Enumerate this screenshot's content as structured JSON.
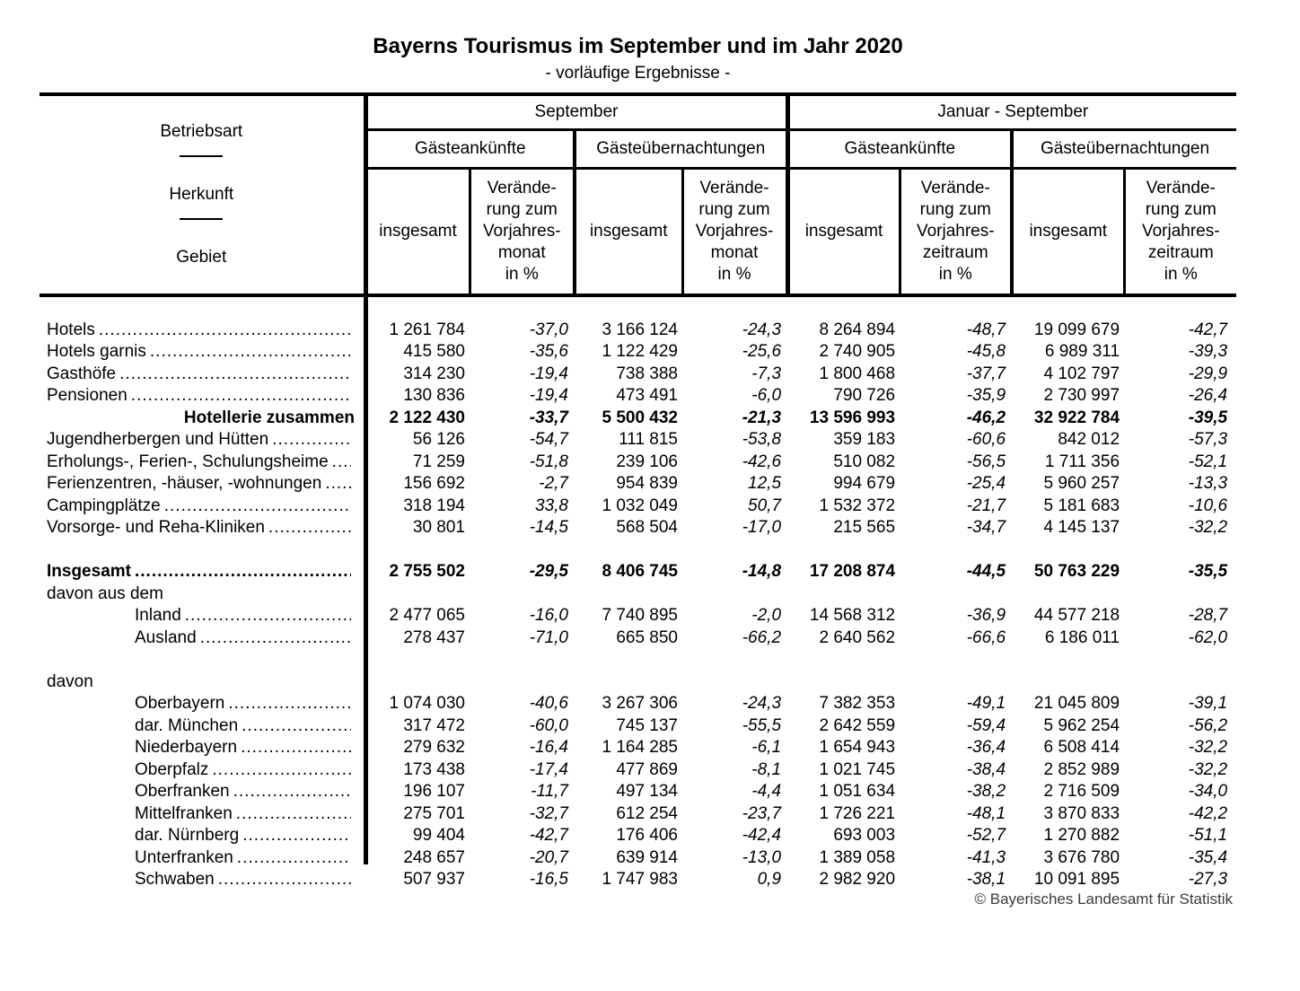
{
  "page": {
    "title": "Bayerns Tourismus im September und im Jahr 2020",
    "subtitle": "- vorläufige Ergebnisse -",
    "footer": "© Bayerisches Landesamt für Statistik"
  },
  "table": {
    "row_header": {
      "betriebsart": "Betriebsart",
      "herkunft": "Herkunft",
      "gebiet": "Gebiet"
    },
    "col_groups": {
      "september": "September",
      "januar_september": "Januar - September"
    },
    "measures": {
      "arrivals": "Gästeankünfte",
      "overnights": "Gästeübernachtungen"
    },
    "subcols": {
      "total": "insgesamt",
      "change_month": "Verände-\nrung zum\nVorjahres-\nmonat\nin %",
      "change_period": "Verände-\nrung zum\nVorjahres-\nzeitraum\nin %"
    },
    "rows": [
      {
        "spacer": true,
        "height": 16
      },
      {
        "label": "Hotels",
        "leader": true,
        "values": [
          "1 261 784",
          "-37,0",
          "3 166 124",
          "-24,3",
          "8 264 894",
          "-48,7",
          "19 099 679",
          "-42,7"
        ]
      },
      {
        "label": "Hotels garnis",
        "leader": true,
        "values": [
          "415 580",
          "-35,6",
          "1 122 429",
          "-25,6",
          "2 740 905",
          "-45,8",
          "6 989 311",
          "-39,3"
        ]
      },
      {
        "label": "Gasthöfe",
        "leader": true,
        "values": [
          "314 230",
          "-19,4",
          "738 388",
          "-7,3",
          "1 800 468",
          "-37,7",
          "4 102 797",
          "-29,9"
        ]
      },
      {
        "label": "Pensionen",
        "leader": true,
        "values": [
          "130 836",
          "-19,4",
          "473 491",
          "-6,0",
          "790 726",
          "-35,9",
          "2 730 997",
          "-26,4"
        ]
      },
      {
        "label": "Hotellerie zusammen",
        "bold": true,
        "align": "right",
        "values": [
          "2 122 430",
          "-33,7",
          "5 500 432",
          "-21,3",
          "13 596 993",
          "-46,2",
          "32 922 784",
          "-39,5"
        ]
      },
      {
        "label": "Jugendherbergen und Hütten",
        "leader": true,
        "values": [
          "56 126",
          "-54,7",
          "111 815",
          "-53,8",
          "359 183",
          "-60,6",
          "842 012",
          "-57,3"
        ]
      },
      {
        "label": "Erholungs-, Ferien-, Schulungsheime",
        "leader": true,
        "values": [
          "71 259",
          "-51,8",
          "239 106",
          "-42,6",
          "510 082",
          "-56,5",
          "1 711 356",
          "-52,1"
        ]
      },
      {
        "label": "Ferienzentren, -häuser, -wohnungen",
        "leader": true,
        "values": [
          "156 692",
          "-2,7",
          "954 839",
          "12,5",
          "994 679",
          "-25,4",
          "5 960 257",
          "-13,3"
        ]
      },
      {
        "label": "Campingplätze",
        "leader": true,
        "values": [
          "318 194",
          "33,8",
          "1 032 049",
          "50,7",
          "1 532 372",
          "-21,7",
          "5 181 683",
          "-10,6"
        ]
      },
      {
        "label": "Vorsorge- und Reha-Kliniken",
        "leader": true,
        "values": [
          "30 801",
          "-14,5",
          "568 504",
          "-17,0",
          "215 565",
          "-34,7",
          "4 145 137",
          "-32,2"
        ]
      },
      {
        "spacer": true,
        "height": 13
      },
      {
        "label": "Insgesamt",
        "bold": true,
        "leader": true,
        "values": [
          "2 755 502",
          "-29,5",
          "8 406 745",
          "-14,8",
          "17 208 874",
          "-44,5",
          "50 763 229",
          "-35,5"
        ]
      },
      {
        "label": "davon aus dem"
      },
      {
        "label": "Inland",
        "indent": true,
        "leader": true,
        "values": [
          "2 477 065",
          "-16,0",
          "7 740 895",
          "-2,0",
          "14 568 312",
          "-36,9",
          "44 577 218",
          "-28,7"
        ]
      },
      {
        "label": "Ausland",
        "indent": true,
        "leader": true,
        "values": [
          "278 437",
          "-71,0",
          "665 850",
          "-66,2",
          "2 640 562",
          "-66,6",
          "6 186 011",
          "-62,0"
        ]
      },
      {
        "spacer": true,
        "height": 13
      },
      {
        "label": "davon"
      },
      {
        "label": "Oberbayern",
        "indent": true,
        "leader": true,
        "values": [
          "1 074 030",
          "-40,6",
          "3 267 306",
          "-24,3",
          "7 382 353",
          "-49,1",
          "21 045 809",
          "-39,1"
        ]
      },
      {
        "label": "dar. München",
        "indent": true,
        "leader": true,
        "values": [
          "317 472",
          "-60,0",
          "745 137",
          "-55,5",
          "2 642 559",
          "-59,4",
          "5 962 254",
          "-56,2"
        ]
      },
      {
        "label": "Niederbayern",
        "indent": true,
        "leader": true,
        "values": [
          "279 632",
          "-16,4",
          "1 164 285",
          "-6,1",
          "1 654 943",
          "-36,4",
          "6 508 414",
          "-32,2"
        ]
      },
      {
        "label": "Oberpfalz",
        "indent": true,
        "leader": true,
        "values": [
          "173 438",
          "-17,4",
          "477 869",
          "-8,1",
          "1 021 745",
          "-38,4",
          "2 852 989",
          "-32,2"
        ]
      },
      {
        "label": "Oberfranken",
        "indent": true,
        "leader": true,
        "values": [
          "196 107",
          "-11,7",
          "497 134",
          "-4,4",
          "1 051 634",
          "-38,2",
          "2 716 509",
          "-34,0"
        ]
      },
      {
        "label": "Mittelfranken",
        "indent": true,
        "leader": true,
        "values": [
          "275 701",
          "-32,7",
          "612 254",
          "-23,7",
          "1 726 221",
          "-48,1",
          "3 870 833",
          "-42,2"
        ]
      },
      {
        "label": "dar. Nürnberg",
        "indent": true,
        "leader": true,
        "values": [
          "99 404",
          "-42,7",
          "176 406",
          "-42,4",
          "693 003",
          "-52,7",
          "1 270 882",
          "-51,1"
        ]
      },
      {
        "label": "Unterfranken",
        "indent": true,
        "leader": true,
        "values": [
          "248 657",
          "-20,7",
          "639 914",
          "-13,0",
          "1 389 058",
          "-41,3",
          "3 676 780",
          "-35,4"
        ]
      },
      {
        "label": "Schwaben",
        "indent": true,
        "leader": true,
        "values": [
          "507 937",
          "-16,5",
          "1 747 983",
          "0,9",
          "2 982 920",
          "-38,1",
          "10 091 895",
          "-27,3"
        ]
      }
    ]
  }
}
